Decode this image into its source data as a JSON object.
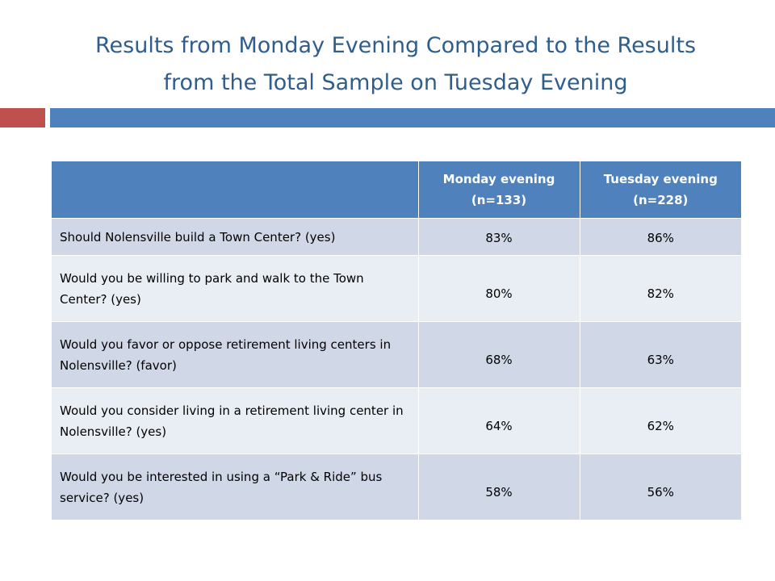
{
  "slide": {
    "title_line1": "Results from Monday Evening Compared to the Results",
    "title_line2": "from the Total Sample on Tuesday Evening"
  },
  "colors": {
    "title": "#2f5d8c",
    "accent_red": "#c0504d",
    "accent_blue": "#4f81bd",
    "header_bg": "#4f81bd",
    "row_dark": "#d0d8e8",
    "row_light": "#e9edf4"
  },
  "table": {
    "columns": [
      {
        "line1": "",
        "line2": ""
      },
      {
        "line1": "Monday evening",
        "line2": "(n=133)"
      },
      {
        "line1": "Tuesday evening",
        "line2": "(n=228)"
      }
    ],
    "rows": [
      {
        "question": "Should Nolensville build a Town Center? (yes)",
        "monday": "83%",
        "tuesday": "86%"
      },
      {
        "question": "Would you be willing to park and walk to the Town Center? (yes)",
        "monday": "80%",
        "tuesday": "82%"
      },
      {
        "question": "Would you favor or oppose retirement living centers in Nolensville? (favor)",
        "monday": "68%",
        "tuesday": "63%"
      },
      {
        "question": "Would you consider living in a retirement living center in Nolensville? (yes)",
        "monday": "64%",
        "tuesday": "62%"
      },
      {
        "question": "Would you be interested in using a “Park & Ride” bus service? (yes)",
        "monday": "58%",
        "tuesday": "56%"
      }
    ]
  }
}
